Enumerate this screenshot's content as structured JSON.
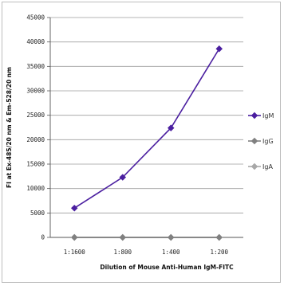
{
  "chart_data": {
    "type": "line",
    "categories": [
      "1:1600",
      "1:800",
      "1:400",
      "1:200"
    ],
    "series": [
      {
        "name": "IgM",
        "values": [
          6000,
          12300,
          22400,
          38600
        ],
        "color": "#4b1fa0"
      },
      {
        "name": "IgG",
        "values": [
          0,
          0,
          0,
          0
        ],
        "color": "#808080"
      },
      {
        "name": "IgA",
        "values": [
          0,
          0,
          0,
          0
        ],
        "color": "#a8a8a8"
      }
    ],
    "y_ticks": [
      "0",
      "5000",
      "10000",
      "15000",
      "20000",
      "25000",
      "30000",
      "35000",
      "40000",
      "45000"
    ],
    "ylim": [
      0,
      45000
    ],
    "xlabel": "Dilution of Mouse Anti-Human IgM-FITC",
    "ylabel": "FI at Ex-485/20 nm & Em-528/20 nm",
    "grid": true,
    "legend": "right"
  }
}
